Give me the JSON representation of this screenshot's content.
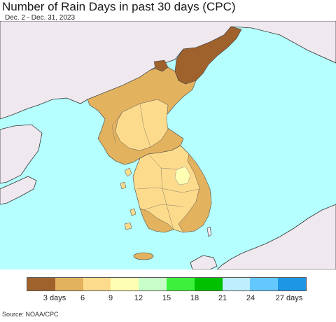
{
  "header": {
    "title": "Number of Rain Days in past 30 days (CPC)",
    "date_range": "Dec. 2 - Dec. 31, 2023"
  },
  "legend": {
    "colors": [
      "#a0622d",
      "#e3b25e",
      "#fddb8c",
      "#ffffb4",
      "#c8ffc8",
      "#3cf03c",
      "#00c000",
      "#bfefff",
      "#64c8ff",
      "#1e96e6"
    ],
    "ticks": [
      "3 days",
      "6",
      "9",
      "12",
      "15",
      "18",
      "21",
      "24",
      "27 days"
    ]
  },
  "map_colors": {
    "sea": "#b5ffff",
    "land_outside": "#efe8ee",
    "very_low": "#a0622d",
    "low": "#e3b25e",
    "mid": "#fddb8c",
    "high": "#ffffb4"
  },
  "footer": {
    "source": "Source: NOAA/CPC"
  }
}
